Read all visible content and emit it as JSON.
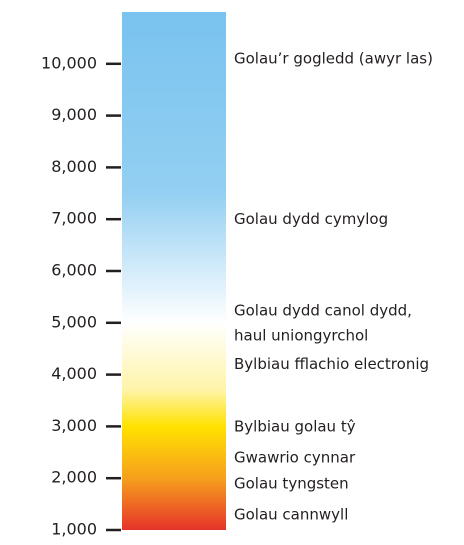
{
  "chart_data": {
    "type": "scale",
    "ylim": [
      1000,
      11000
    ],
    "yticks": [
      {
        "value": 1000,
        "label": "1,000"
      },
      {
        "value": 2000,
        "label": "2,000"
      },
      {
        "value": 3000,
        "label": "3,000"
      },
      {
        "value": 4000,
        "label": "4,000"
      },
      {
        "value": 5000,
        "label": "5,000"
      },
      {
        "value": 6000,
        "label": "6,000"
      },
      {
        "value": 7000,
        "label": "7,000"
      },
      {
        "value": 8000,
        "label": "8,000"
      },
      {
        "value": 9000,
        "label": "9,000"
      },
      {
        "value": 10000,
        "label": "10,000"
      }
    ],
    "gradient": [
      {
        "value": 11000,
        "color": "#79c3ef"
      },
      {
        "value": 7500,
        "color": "#93cff2"
      },
      {
        "value": 5000,
        "color": "#ffffff"
      },
      {
        "value": 3700,
        "color": "#fff4a8"
      },
      {
        "value": 3000,
        "color": "#ffe200"
      },
      {
        "value": 2000,
        "color": "#f6a01d"
      },
      {
        "value": 1000,
        "color": "#e6332a"
      }
    ],
    "annotations": [
      {
        "lines": [
          "Golau’r gogledd (awyr las)"
        ],
        "y": 10100
      },
      {
        "lines": [
          "Golau dydd cymylog"
        ],
        "y": 7000
      },
      {
        "lines": [
          "Golau dydd canol dydd,",
          "haul uniongyrchol"
        ],
        "y": 5000
      },
      {
        "lines": [
          "Bylbiau fflachio electronig"
        ],
        "y": 4200
      },
      {
        "lines": [
          "Bylbiau golau tŷ"
        ],
        "y": 3000
      },
      {
        "lines": [
          "Gwawrio cynnar"
        ],
        "y": 2400
      },
      {
        "lines": [
          "Golau tyngsten"
        ],
        "y": 1900
      },
      {
        "lines": [
          "Golau cannwyll"
        ],
        "y": 1300
      }
    ]
  }
}
